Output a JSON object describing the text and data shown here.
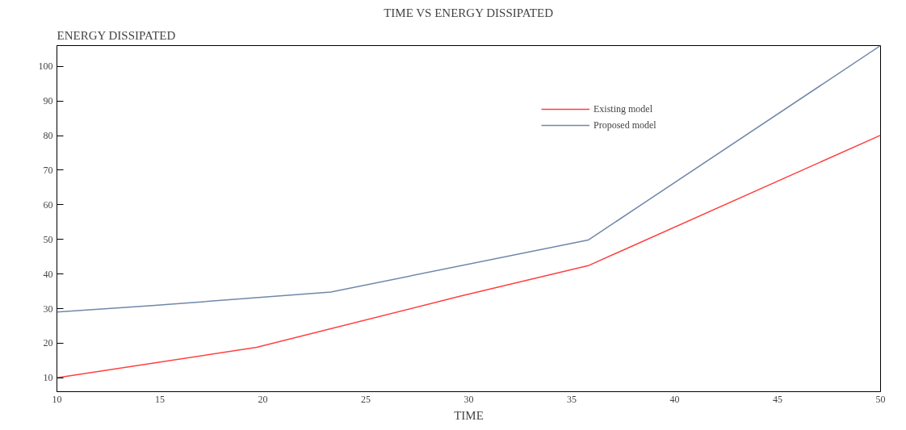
{
  "chart_data": {
    "type": "line",
    "title": "TIME VS ENERGY DISSIPATED",
    "xlabel": "TIME",
    "ylabel": "ENERGY DISSIPATED",
    "xlim": [
      10,
      50
    ],
    "xticks": [
      10,
      15,
      20,
      25,
      30,
      35,
      40,
      45,
      50
    ],
    "ylim": [
      6,
      106
    ],
    "yticks": [
      10,
      20,
      30,
      40,
      50,
      60,
      70,
      80,
      90,
      100
    ],
    "grid": false,
    "legend": "top right",
    "marker": "none",
    "line_style": "solid",
    "series": [
      {
        "name": "Existing model",
        "color": "#ff4040",
        "x": [
          10,
          19.7,
          29.6,
          35.8,
          50
        ],
        "values": [
          10,
          18.8,
          33.6,
          42.4,
          80.1
        ]
      },
      {
        "name": "Proposed model",
        "color": "#6f88a8",
        "x": [
          10,
          14.5,
          23.3,
          35.8,
          50
        ],
        "values": [
          29,
          30.8,
          34.8,
          49.8,
          106
        ]
      }
    ]
  }
}
